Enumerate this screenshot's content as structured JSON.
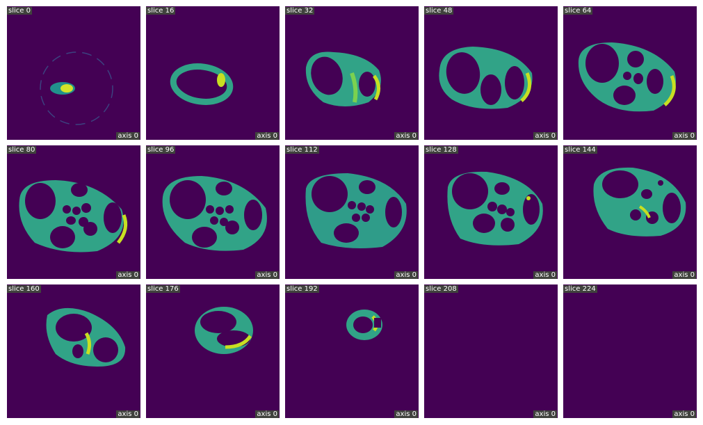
{
  "colors": {
    "background": "#440154",
    "ring": "#31a387",
    "ring_edge": "#2a8a86",
    "highlight": "#c8df22"
  },
  "tiles": [
    {
      "slice_label": "slice 0",
      "axis_label": "axis 0",
      "shape": "small-blob"
    },
    {
      "slice_label": "slice 16",
      "axis_label": "axis 0",
      "shape": "thin-ring"
    },
    {
      "slice_label": "slice 32",
      "axis_label": "axis 0",
      "shape": "ring-two-cavities"
    },
    {
      "slice_label": "slice 48",
      "axis_label": "axis 0",
      "shape": "ring-three-cavities"
    },
    {
      "slice_label": "slice 64",
      "axis_label": "axis 0",
      "shape": "ring-multi-cavities"
    },
    {
      "slice_label": "slice 80",
      "axis_label": "axis 0",
      "shape": "ring-many-cavities"
    },
    {
      "slice_label": "slice 96",
      "axis_label": "axis 0",
      "shape": "ring-many-cavities"
    },
    {
      "slice_label": "slice 112",
      "axis_label": "axis 0",
      "shape": "ring-many-cavities"
    },
    {
      "slice_label": "slice 128",
      "axis_label": "axis 0",
      "shape": "ring-multi-cavities"
    },
    {
      "slice_label": "slice 144",
      "axis_label": "axis 0",
      "shape": "ring-multi-cavities"
    },
    {
      "slice_label": "slice 160",
      "axis_label": "axis 0",
      "shape": "ring-two-cavities"
    },
    {
      "slice_label": "slice 176",
      "axis_label": "axis 0",
      "shape": "ring-two-cavities"
    },
    {
      "slice_label": "slice 192",
      "axis_label": "axis 0",
      "shape": "small-ring"
    },
    {
      "slice_label": "slice 208",
      "axis_label": "axis 0",
      "shape": "empty"
    },
    {
      "slice_label": "slice 224",
      "axis_label": "axis 0",
      "shape": "empty"
    }
  ]
}
